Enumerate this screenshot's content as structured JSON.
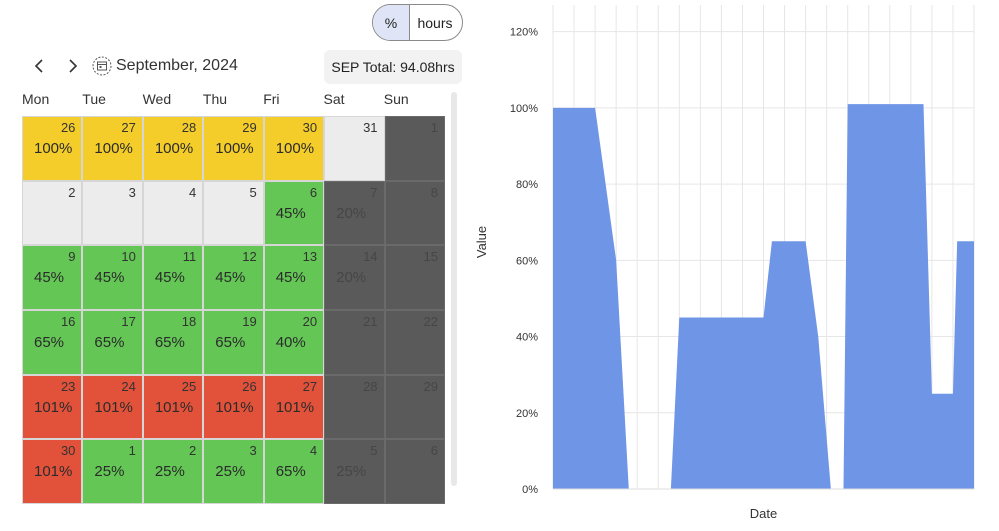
{
  "toggle": {
    "percent_label": "%",
    "hours_label": "hours"
  },
  "calendar": {
    "month_label": "September, 2024",
    "total_label": "SEP Total: 94.08hrs",
    "weekdays": [
      "Mon",
      "Tue",
      "Wed",
      "Thu",
      "Fri",
      "Sat",
      "Sun"
    ],
    "cells": [
      {
        "day": "26",
        "value": "100%",
        "color": "yellow"
      },
      {
        "day": "27",
        "value": "100%",
        "color": "yellow"
      },
      {
        "day": "28",
        "value": "100%",
        "color": "yellow"
      },
      {
        "day": "29",
        "value": "100%",
        "color": "yellow"
      },
      {
        "day": "30",
        "value": "100%",
        "color": "yellow"
      },
      {
        "day": "31",
        "value": "",
        "color": "light"
      },
      {
        "day": "1",
        "value": "",
        "color": "dark"
      },
      {
        "day": "2",
        "value": "",
        "color": "light"
      },
      {
        "day": "3",
        "value": "",
        "color": "light"
      },
      {
        "day": "4",
        "value": "",
        "color": "light"
      },
      {
        "day": "5",
        "value": "",
        "color": "light"
      },
      {
        "day": "6",
        "value": "45%",
        "color": "green"
      },
      {
        "day": "7",
        "value": "20%",
        "color": "dark"
      },
      {
        "day": "8",
        "value": "",
        "color": "dark"
      },
      {
        "day": "9",
        "value": "45%",
        "color": "green"
      },
      {
        "day": "10",
        "value": "45%",
        "color": "green"
      },
      {
        "day": "11",
        "value": "45%",
        "color": "green"
      },
      {
        "day": "12",
        "value": "45%",
        "color": "green"
      },
      {
        "day": "13",
        "value": "45%",
        "color": "green"
      },
      {
        "day": "14",
        "value": "20%",
        "color": "dark"
      },
      {
        "day": "15",
        "value": "",
        "color": "dark"
      },
      {
        "day": "16",
        "value": "65%",
        "color": "green"
      },
      {
        "day": "17",
        "value": "65%",
        "color": "green"
      },
      {
        "day": "18",
        "value": "65%",
        "color": "green"
      },
      {
        "day": "19",
        "value": "65%",
        "color": "green"
      },
      {
        "day": "20",
        "value": "40%",
        "color": "green"
      },
      {
        "day": "21",
        "value": "",
        "color": "dark"
      },
      {
        "day": "22",
        "value": "",
        "color": "dark"
      },
      {
        "day": "23",
        "value": "101%",
        "color": "red"
      },
      {
        "day": "24",
        "value": "101%",
        "color": "red"
      },
      {
        "day": "25",
        "value": "101%",
        "color": "red"
      },
      {
        "day": "26",
        "value": "101%",
        "color": "red"
      },
      {
        "day": "27",
        "value": "101%",
        "color": "red"
      },
      {
        "day": "28",
        "value": "",
        "color": "dark"
      },
      {
        "day": "29",
        "value": "",
        "color": "dark"
      },
      {
        "day": "30",
        "value": "101%",
        "color": "red"
      },
      {
        "day": "1",
        "value": "25%",
        "color": "green"
      },
      {
        "day": "2",
        "value": "25%",
        "color": "green"
      },
      {
        "day": "3",
        "value": "25%",
        "color": "green"
      },
      {
        "day": "4",
        "value": "65%",
        "color": "green"
      },
      {
        "day": "5",
        "value": "25%",
        "color": "dark"
      },
      {
        "day": "6",
        "value": "",
        "color": "dark"
      }
    ]
  },
  "icons": {
    "prev": "chevron-left-icon",
    "next": "chevron-right-icon",
    "calendar": "calendar-icon"
  },
  "colors": {
    "area_fill": "#6f95e6",
    "yellow": "#f4cd2a",
    "green": "#63c655",
    "red": "#e2523a",
    "dark": "#5a5a5a",
    "light": "#ececec"
  },
  "chart_data": {
    "type": "area",
    "xlabel": "Date",
    "ylabel": "Value",
    "ylim": [
      0,
      1.27
    ],
    "yticks": [
      "0%",
      "20%",
      "40%",
      "60%",
      "80%",
      "100%",
      "120%"
    ],
    "ytick_values": [
      0,
      0.2,
      0.4,
      0.6,
      0.8,
      1.0,
      1.2
    ],
    "grid": true,
    "segments": [
      [
        [
          0,
          1.0
        ],
        [
          1,
          1.0
        ],
        [
          1.5,
          0.6
        ],
        [
          1.8,
          0.0
        ]
      ],
      [
        [
          2.8,
          0.0
        ],
        [
          3,
          0.45
        ],
        [
          4,
          0.45
        ],
        [
          5,
          0.45
        ],
        [
          5,
          0.45
        ],
        [
          5.2,
          0.65
        ],
        [
          6,
          0.65
        ],
        [
          6.3,
          0.4
        ],
        [
          6.6,
          0.0
        ]
      ],
      [
        [
          6.9,
          0.0
        ],
        [
          7,
          1.01
        ],
        [
          8,
          1.01
        ],
        [
          8.8,
          1.01
        ],
        [
          9,
          0.25
        ],
        [
          9.5,
          0.25
        ],
        [
          9.6,
          0.65
        ],
        [
          10,
          0.65
        ]
      ]
    ],
    "x_domain": [
      0,
      10
    ]
  }
}
